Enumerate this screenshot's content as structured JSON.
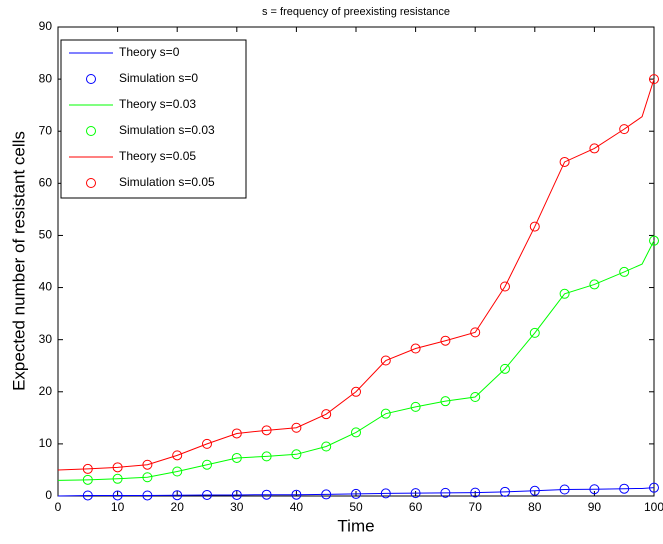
{
  "chart_data": {
    "type": "line",
    "title": "s = frequency of preexisting resistance",
    "x_label": "Time",
    "y_label": "Expected number of resistant cells",
    "xlim": [
      0,
      100
    ],
    "xticks": [
      0,
      10,
      20,
      30,
      40,
      50,
      60,
      70,
      80,
      90,
      100
    ],
    "ylim": [
      0,
      90
    ],
    "yticks": [
      0,
      10,
      20,
      30,
      40,
      50,
      60,
      70,
      80,
      90
    ],
    "legend": "upper-left",
    "series": [
      {
        "name": "Theory s=0",
        "color": "#0000ff",
        "style": "line",
        "x": [
          0,
          5,
          10,
          15,
          20,
          25,
          30,
          35,
          40,
          45,
          50,
          55,
          60,
          65,
          70,
          75,
          80,
          85,
          90,
          95,
          98,
          100
        ],
        "values": [
          0,
          0.1,
          0.1,
          0.1,
          0.15,
          0.2,
          0.2,
          0.25,
          0.25,
          0.3,
          0.4,
          0.5,
          0.55,
          0.6,
          0.65,
          0.8,
          1,
          1.25,
          1.3,
          1.4,
          1.45,
          1.6
        ]
      },
      {
        "name": "Simulation s=0",
        "color": "#0000ff",
        "style": "marker",
        "x": [
          5,
          10,
          15,
          20,
          25,
          30,
          35,
          40,
          45,
          50,
          55,
          60,
          65,
          70,
          75,
          80,
          85,
          90,
          95,
          100
        ],
        "values": [
          0.1,
          0.1,
          0.1,
          0.15,
          0.2,
          0.2,
          0.25,
          0.25,
          0.3,
          0.4,
          0.5,
          0.55,
          0.6,
          0.65,
          0.8,
          1,
          1.25,
          1.3,
          1.4,
          1.6
        ]
      },
      {
        "name": "Theory s=0.03",
        "color": "#00ff00",
        "style": "line",
        "x": [
          0,
          5,
          10,
          15,
          20,
          25,
          30,
          35,
          40,
          45,
          50,
          55,
          60,
          65,
          70,
          75,
          80,
          85,
          90,
          95,
          98,
          100
        ],
        "values": [
          3,
          3.1,
          3.3,
          3.6,
          4.7,
          6,
          7.3,
          7.6,
          8,
          9.5,
          12.2,
          15.8,
          17.1,
          18.2,
          19,
          24.4,
          31.3,
          38.8,
          40.6,
          43,
          44.5,
          49
        ]
      },
      {
        "name": "Simulation s=0.03",
        "color": "#00ff00",
        "style": "marker",
        "x": [
          5,
          10,
          15,
          20,
          25,
          30,
          35,
          40,
          45,
          50,
          55,
          60,
          65,
          70,
          75,
          80,
          85,
          90,
          95,
          100
        ],
        "values": [
          3.1,
          3.3,
          3.6,
          4.7,
          6,
          7.3,
          7.6,
          8,
          9.5,
          12.2,
          15.8,
          17.1,
          18.2,
          19,
          24.4,
          31.3,
          38.8,
          40.6,
          43,
          49
        ]
      },
      {
        "name": "Theory s=0.05",
        "color": "#ff0000",
        "style": "line",
        "x": [
          0,
          5,
          10,
          15,
          20,
          25,
          30,
          35,
          40,
          45,
          50,
          55,
          60,
          65,
          70,
          75,
          80,
          85,
          90,
          95,
          98,
          100
        ],
        "values": [
          5,
          5.2,
          5.5,
          6,
          7.8,
          10,
          12,
          12.6,
          13.1,
          15.7,
          20,
          26,
          28.3,
          29.8,
          31.4,
          40.2,
          51.7,
          64.1,
          66.7,
          70.4,
          72.8,
          80
        ]
      },
      {
        "name": "Simulation s=0.05",
        "color": "#ff0000",
        "style": "marker",
        "x": [
          5,
          10,
          15,
          20,
          25,
          30,
          35,
          40,
          45,
          50,
          55,
          60,
          65,
          70,
          75,
          80,
          85,
          90,
          95,
          100
        ],
        "values": [
          5.2,
          5.5,
          6,
          7.8,
          10,
          12,
          12.6,
          13.1,
          15.7,
          20,
          26,
          28.3,
          29.8,
          31.4,
          40.2,
          51.7,
          64.1,
          66.7,
          70.4,
          80
        ]
      }
    ]
  }
}
